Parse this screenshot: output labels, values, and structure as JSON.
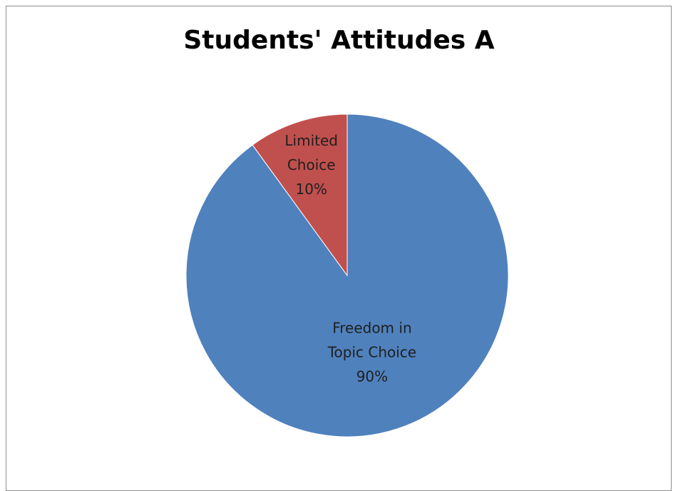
{
  "chart_data": {
    "type": "pie",
    "title": "Students' Attitudes A",
    "categories": [
      "Freedom in Topic Choice",
      "Limited Choice"
    ],
    "values": [
      90,
      10
    ],
    "slice_labels": [
      {
        "lines": [
          "Freedom in",
          "Topic Choice",
          "90%"
        ]
      },
      {
        "lines": [
          "Limited",
          "Choice",
          "10%"
        ]
      }
    ],
    "colors": [
      "#4F81BD",
      "#C0504D"
    ],
    "legend": "none"
  }
}
